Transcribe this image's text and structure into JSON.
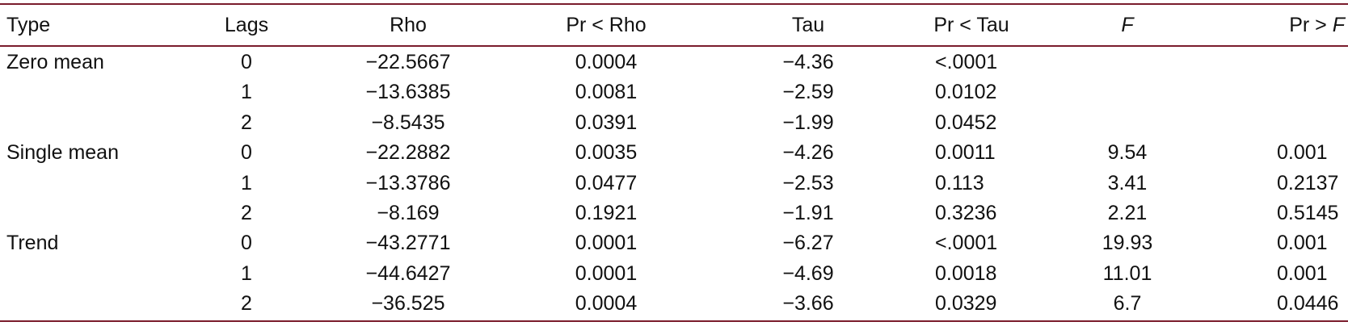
{
  "table": {
    "header": {
      "type": "Type",
      "lags": "Lags",
      "rho": "Rho",
      "pr_rho": "Pr < Rho",
      "tau": "Tau",
      "pr_tau": "Pr < Tau",
      "f": "F",
      "pr_f_prefix": "Pr > ",
      "pr_f_var": "F"
    },
    "rows": [
      {
        "type": "Zero mean",
        "lags": "0",
        "rho": "−22.5667",
        "pr_rho": "0.0004",
        "tau": "−4.36",
        "pr_tau": "<.0001",
        "f": "",
        "pr_f": ""
      },
      {
        "type": "",
        "lags": "1",
        "rho": "−13.6385",
        "pr_rho": "0.0081",
        "tau": "−2.59",
        "pr_tau": "0.0102",
        "f": "",
        "pr_f": ""
      },
      {
        "type": "",
        "lags": "2",
        "rho": "−8.5435",
        "pr_rho": "0.0391",
        "tau": "−1.99",
        "pr_tau": "0.0452",
        "f": "",
        "pr_f": ""
      },
      {
        "type": "Single mean",
        "lags": "0",
        "rho": "−22.2882",
        "pr_rho": "0.0035",
        "tau": "−4.26",
        "pr_tau": "0.0011",
        "f": "9.54",
        "pr_f": "0.001"
      },
      {
        "type": "",
        "lags": "1",
        "rho": "−13.3786",
        "pr_rho": "0.0477",
        "tau": "−2.53",
        "pr_tau": "0.113",
        "f": "3.41",
        "pr_f": "0.2137"
      },
      {
        "type": "",
        "lags": "2",
        "rho": "−8.169",
        "pr_rho": "0.1921",
        "tau": "−1.91",
        "pr_tau": "0.3236",
        "f": "2.21",
        "pr_f": "0.5145"
      },
      {
        "type": "Trend",
        "lags": "0",
        "rho": "−43.2771",
        "pr_rho": "0.0001",
        "tau": "−6.27",
        "pr_tau": "<.0001",
        "f": "19.93",
        "pr_f": "0.001"
      },
      {
        "type": "",
        "lags": "1",
        "rho": "−44.6427",
        "pr_rho": "0.0001",
        "tau": "−4.69",
        "pr_tau": "0.0018",
        "f": "11.01",
        "pr_f": "0.001"
      },
      {
        "type": "",
        "lags": "2",
        "rho": "−36.525",
        "pr_rho": "0.0004",
        "tau": "−3.66",
        "pr_tau": "0.0329",
        "f": "6.7",
        "pr_f": "0.0446"
      }
    ],
    "rule_color": "#7a1c2c"
  }
}
